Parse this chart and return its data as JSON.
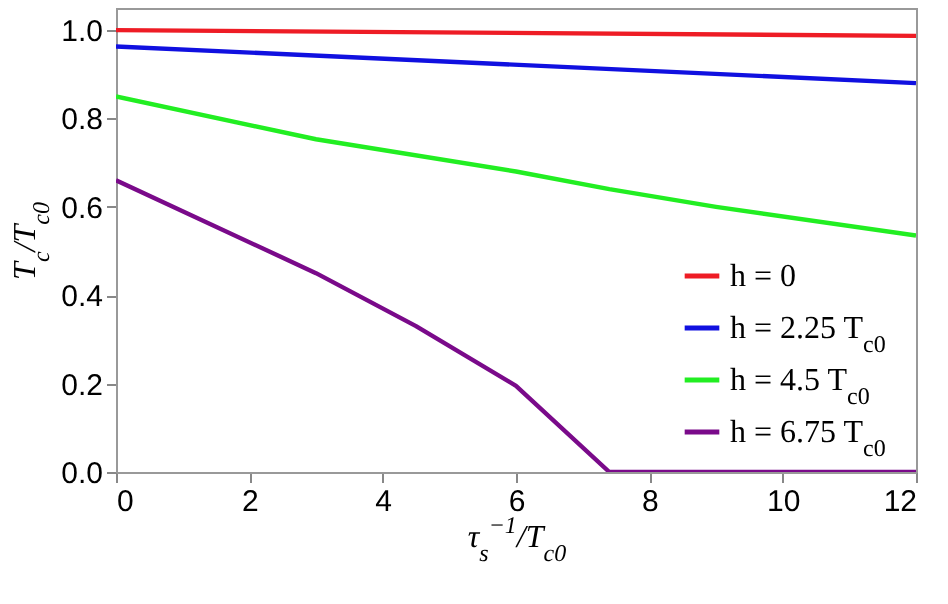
{
  "chart_data": {
    "type": "line",
    "xlabel": "τ$_{s}$$^{−1}$/T$_{c0}$",
    "ylabel": "T$_{c}$/T$_{c0}$",
    "xlim": [
      0,
      12
    ],
    "ylim": [
      0,
      1.05
    ],
    "xticks": [
      0,
      2,
      4,
      6,
      8,
      10,
      12
    ],
    "yticks": [
      {
        "value": 0,
        "label": "0.0"
      },
      0.2,
      0.4,
      0.6,
      0.8,
      {
        "value": 1,
        "label": "1.0"
      }
    ],
    "legend": "bottom right",
    "grid": false,
    "marker": "none",
    "line_style": "solid",
    "series": [
      {
        "name": "h = 0",
        "color": "#ee1c25",
        "x": [
          0,
          12
        ],
        "values": [
          1.0,
          0.987
        ]
      },
      {
        "name": "h = 2.25 T$_{c0}$",
        "color": "#1010e0",
        "x": [
          0,
          12
        ],
        "values": [
          0.963,
          0.88
        ]
      },
      {
        "name": "h = 4.5 T$_{c0}$",
        "color": "#22ee22",
        "x": [
          0,
          3,
          6,
          7.4,
          9,
          12
        ],
        "values": [
          0.85,
          0.753,
          0.68,
          0.64,
          0.6,
          0.535
        ]
      },
      {
        "name": "h = 6.75 T$_{c0}$",
        "color": "#7a0a8a",
        "x": [
          0,
          3,
          4.5,
          6,
          7.4,
          12
        ],
        "values": [
          0.66,
          0.45,
          0.33,
          0.195,
          0,
          0
        ]
      }
    ]
  }
}
